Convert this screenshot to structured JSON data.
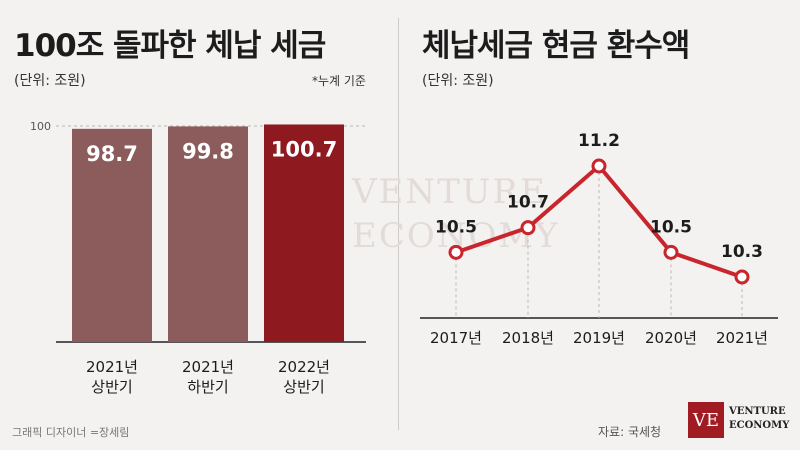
{
  "left_panel": {
    "title": "100조 돌파한 체납 세금",
    "unit": "(단위: 조원)",
    "note": "*누계 기준"
  },
  "right_panel": {
    "title": "체납세금 현금 환수액",
    "unit": "(단위: 조원)"
  },
  "footer": {
    "credit": "그래픽 디자이너 =장세림",
    "source": "자료: 국세청",
    "logo_mark": "VE",
    "logo_text_line1": "VENTURE",
    "logo_text_line2": "ECONOMY"
  },
  "watermark": {
    "line1": "VENTURE",
    "line2": "ECONOMY"
  },
  "colors": {
    "bar_muted": "#8c5c5c",
    "bar_highlight": "#8e1a1f",
    "line": "#c8262c",
    "marker_fill": "#ffffff"
  },
  "chart_data": [
    {
      "type": "bar",
      "categories": [
        [
          "2021년",
          "상반기"
        ],
        [
          "2021년",
          "하반기"
        ],
        [
          "2022년",
          "상반기"
        ]
      ],
      "values": [
        98.7,
        99.8,
        100.7
      ],
      "value_labels": [
        "98.7",
        "99.8",
        "100.7"
      ],
      "highlight_index": 2,
      "ytick": "100",
      "ytick_value": 100,
      "title": "100조 돌파한 체납 세금",
      "ylabel": "",
      "xlabel": ""
    },
    {
      "type": "line",
      "categories": [
        "2017년",
        "2018년",
        "2019년",
        "2020년",
        "2021년"
      ],
      "values": [
        10.5,
        10.7,
        11.2,
        10.5,
        10.3
      ],
      "value_labels": [
        "10.5",
        "10.7",
        "11.2",
        "10.5",
        "10.3"
      ],
      "title": "체납세금 현금 환수액",
      "ylabel": "",
      "xlabel": ""
    }
  ]
}
